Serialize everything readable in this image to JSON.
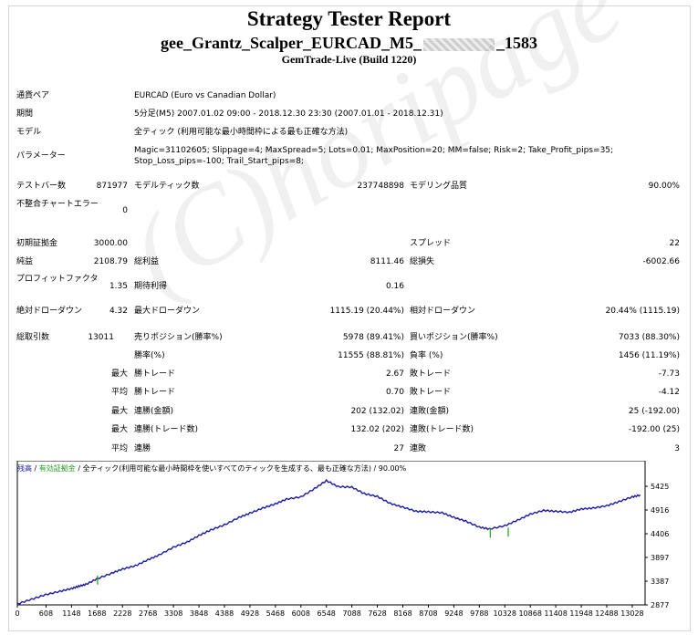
{
  "header": {
    "title": "Strategy Tester Report",
    "subtitle_left": "gee_Grantz_Scalper_EURCAD_M5_",
    "subtitle_right": "_1583",
    "server": "GemTrade-Live (Build 1220)"
  },
  "params": [
    {
      "label": "通貨ペア",
      "value": "EURCAD (Euro vs Canadian Dollar)"
    },
    {
      "label": "期間",
      "value": "5分足(M5) 2007.01.02 09:00 - 2018.12.30 23:30 (2007.01.01 - 2018.12.31)"
    },
    {
      "label": "モデル",
      "value": "全ティック (利用可能な最小時間枠による最も正確な方法)"
    },
    {
      "label": "パラメーター",
      "value": "Magic=31102605; Slippage=4; MaxSpread=5; Lots=0.01; MaxPosition=20; MM=false; Risk=2; Take_Profit_pips=35; Stop_Loss_pips=-100; Trail_Start_pips=8;"
    }
  ],
  "stats": {
    "bars_label": "テストバー数",
    "bars": "871977",
    "ticks_label": "モデルティック数",
    "ticks": "237748898",
    "quality_label": "モデリング品質",
    "quality": "90.00%",
    "mismatch_label": "不整合チャートエラー",
    "mismatch": "0",
    "deposit_label": "初期証拠金",
    "deposit": "3000.00",
    "spread_label": "スプレッド",
    "spread": "22",
    "net_label": "純益",
    "net": "2108.79",
    "gross_profit_label": "総利益",
    "gross_profit": "8111.46",
    "gross_loss_label": "総損失",
    "gross_loss": "-6002.66",
    "pf_label": "プロフィットファクタ",
    "pf": "1.35",
    "expected_label": "期待利得",
    "expected": "0.16",
    "abs_dd_label": "絶対ドローダウン",
    "abs_dd": "4.32",
    "max_dd_label": "最大ドローダウン",
    "max_dd": "1115.19 (20.44%)",
    "rel_dd_label": "相対ドローダウン",
    "rel_dd": "20.44% (1115.19)",
    "trades_label": "総取引数",
    "trades": "13011",
    "short_label": "売りポジション(勝率%)",
    "short": "5978 (89.41%)",
    "long_label": "買いポジション(勝率%)",
    "long": "7033 (88.30%)",
    "win_label": "勝率(%)",
    "win": "11555 (88.81%)",
    "loss_label": "負率 (%)",
    "loss": "1456 (11.19%)",
    "max_label": "最大",
    "avg_label": "平均",
    "best_label": "勝トレード",
    "best": "2.67",
    "worst_label": "敗トレード",
    "worst": "-7.73",
    "avg_win_label": "勝トレード",
    "avg_win": "0.70",
    "avg_loss_label": "敗トレード",
    "avg_loss": "-4.12",
    "cons_win_amt_label": "連勝(金額)",
    "cons_win_amt": "202 (132.02)",
    "cons_loss_amt_label": "連敗(金額)",
    "cons_loss_amt": "25 (-192.00)",
    "cons_win_cnt_label": "連勝(トレード数)",
    "cons_win_cnt": "132.02 (202)",
    "cons_loss_cnt_label": "連敗(トレード数)",
    "cons_loss_cnt": "-192.00 (25)",
    "avg_cons_win_label": "連勝",
    "avg_cons_win": "27",
    "avg_cons_loss_label": "連敗",
    "avg_cons_loss": "3"
  },
  "legend": {
    "balance": "残高",
    "equity": "有効証拠金",
    "rest": "全ティック(利用可能な最小時間枠を使いすべてのティックを生成する、最も正確な方法) / 90.00%"
  },
  "watermark": "(C)horipage",
  "colors": {
    "balance": "#1a1aa6",
    "equity": "#1f9e1f",
    "axis": "#000000"
  },
  "chart_data": {
    "type": "line",
    "x_ticks": [
      "0",
      "608",
      "1148",
      "1688",
      "2228",
      "2768",
      "3308",
      "3848",
      "4388",
      "4928",
      "5468",
      "6008",
      "6548",
      "7088",
      "7628",
      "8168",
      "8708",
      "9248",
      "9788",
      "10328",
      "10868",
      "11408",
      "11948",
      "12488",
      "13028"
    ],
    "y_ticks": [
      "5425",
      "4916",
      "4406",
      "3897",
      "3387",
      "2877"
    ],
    "ylim": [
      2877,
      5700
    ],
    "xlim": [
      0,
      13300
    ],
    "series": [
      {
        "name": "残高",
        "points": [
          [
            0,
            2900
          ],
          [
            300,
            3000
          ],
          [
            600,
            3100
          ],
          [
            900,
            3170
          ],
          [
            1148,
            3230
          ],
          [
            1300,
            3280
          ],
          [
            1450,
            3320
          ],
          [
            1688,
            3440
          ],
          [
            2000,
            3560
          ],
          [
            2228,
            3650
          ],
          [
            2500,
            3720
          ],
          [
            2768,
            3850
          ],
          [
            3000,
            3950
          ],
          [
            3308,
            4120
          ],
          [
            3600,
            4230
          ],
          [
            3848,
            4370
          ],
          [
            4100,
            4490
          ],
          [
            4388,
            4600
          ],
          [
            4700,
            4760
          ],
          [
            4928,
            4850
          ],
          [
            5200,
            4960
          ],
          [
            5468,
            5050
          ],
          [
            5700,
            5150
          ],
          [
            6008,
            5200
          ],
          [
            6300,
            5380
          ],
          [
            6548,
            5550
          ],
          [
            6800,
            5420
          ],
          [
            7088,
            5410
          ],
          [
            7350,
            5270
          ],
          [
            7628,
            5210
          ],
          [
            7900,
            5060
          ],
          [
            8168,
            4980
          ],
          [
            8450,
            4890
          ],
          [
            8708,
            4880
          ],
          [
            9000,
            4860
          ],
          [
            9248,
            4760
          ],
          [
            9500,
            4680
          ],
          [
            9788,
            4550
          ],
          [
            10000,
            4510
          ],
          [
            10328,
            4580
          ],
          [
            10600,
            4700
          ],
          [
            10868,
            4830
          ],
          [
            11150,
            4910
          ],
          [
            11408,
            4890
          ],
          [
            11700,
            4870
          ],
          [
            11948,
            4940
          ],
          [
            12200,
            4960
          ],
          [
            12488,
            5010
          ],
          [
            12750,
            5100
          ],
          [
            13028,
            5200
          ],
          [
            13200,
            5240
          ]
        ]
      },
      {
        "name": "有効証拠金",
        "points": [
          [
            1700,
            3410
          ],
          [
            10020,
            4420
          ],
          [
            10400,
            4440
          ]
        ]
      }
    ]
  }
}
